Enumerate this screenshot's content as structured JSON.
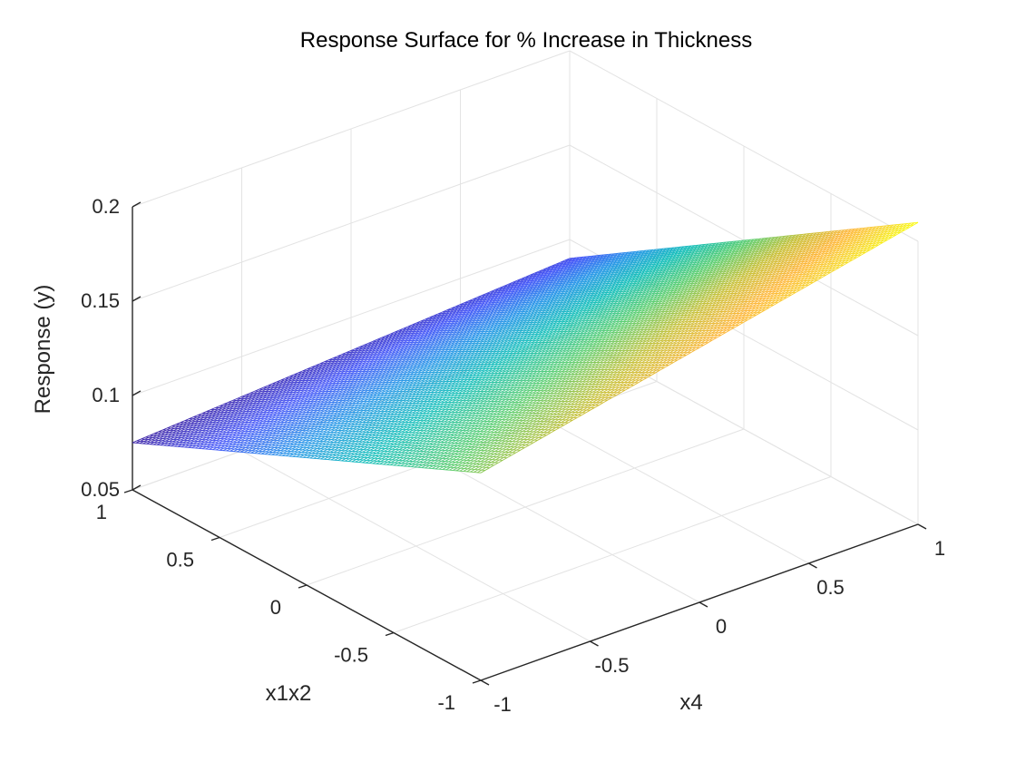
{
  "chart_data": {
    "type": "surface",
    "title": "Response Surface for % Increase in Thickness",
    "xlabel": "x4",
    "ylabel": "x1x2",
    "zlabel": "Response (y)",
    "x_range": [
      -1,
      1
    ],
    "y_range": [
      -1,
      1
    ],
    "z_range": [
      0.05,
      0.2
    ],
    "x_ticks": [
      "-1",
      "-0.5",
      "0",
      "0.5",
      "1"
    ],
    "y_ticks": [
      "-1",
      "-0.5",
      "0",
      "0.5",
      "1"
    ],
    "z_ticks": [
      "0.05",
      "0.1",
      "0.15",
      "0.2"
    ],
    "corner_values": [
      {
        "x4": -1,
        "x1x2": 1,
        "y": 0.075
      },
      {
        "x4": -1,
        "x1x2": -1,
        "y": 0.16
      },
      {
        "x4": 1,
        "x1x2": 1,
        "y": 0.09
      },
      {
        "x4": 1,
        "x1x2": -1,
        "y": 0.21
      }
    ],
    "colormap": "parula",
    "grid": true,
    "mesh_resolution": 101
  }
}
